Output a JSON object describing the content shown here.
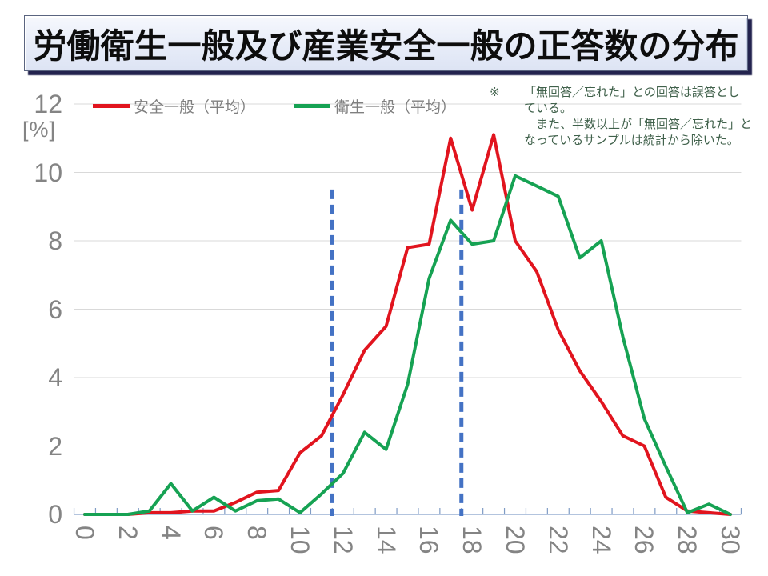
{
  "title": "労働衛生一般及び産業安全一般の正答数の分布",
  "note": {
    "marker": "※",
    "lines": [
      "「無回答／忘れた」との回答は誤答とし",
      "ている。",
      "　また、半数以上が「無回答／忘れた」と",
      "なっているサンプルは統計から除いた。"
    ]
  },
  "colors": {
    "grid": "#d9d9d9",
    "axis": "#9ab1d3",
    "tick": "#7f9cc5",
    "axis_label": "#848484",
    "legend_text": "#7f7f7f",
    "note_text": "#40614b",
    "series_red": "#e1141e",
    "series_green": "#16a253",
    "mean_line_blue": "#4472c4"
  },
  "chart_data": {
    "type": "line",
    "title": "労働衛生一般及び産業安全一般の正答数の分布",
    "xlabel": "",
    "ylabel": "[%]",
    "categories": [
      0,
      1,
      2,
      3,
      4,
      5,
      6,
      7,
      8,
      9,
      10,
      11,
      12,
      13,
      14,
      15,
      16,
      17,
      18,
      19,
      20,
      21,
      22,
      23,
      24,
      25,
      26,
      27,
      28,
      29,
      30
    ],
    "yticks": [
      0,
      2,
      4,
      6,
      8,
      10,
      12
    ],
    "ylim": [
      0,
      12
    ],
    "grid": true,
    "legend_position": "top",
    "series": [
      {
        "name": "安全一般（平均）",
        "color": "#e1141e",
        "values": [
          0,
          0,
          0,
          0.05,
          0.05,
          0.1,
          0.1,
          0.35,
          0.65,
          0.7,
          1.8,
          2.3,
          3.5,
          4.8,
          5.5,
          7.8,
          7.9,
          11.0,
          8.9,
          11.1,
          8.0,
          7.1,
          5.4,
          4.2,
          3.3,
          2.3,
          2.0,
          0.5,
          0.1,
          0.05,
          0
        ]
      },
      {
        "name": "衛生一般（平均）",
        "color": "#16a253",
        "values": [
          0,
          0,
          0,
          0.1,
          0.9,
          0.1,
          0.5,
          0.1,
          0.4,
          0.45,
          0.05,
          0.6,
          1.2,
          2.4,
          1.9,
          3.8,
          6.9,
          8.6,
          7.9,
          8.0,
          9.9,
          9.6,
          9.3,
          7.5,
          8.0,
          5.2,
          2.8,
          1.4,
          0.05,
          0.3,
          0
        ]
      }
    ],
    "mean_lines": {
      "style": "dashed-vertical",
      "color": "#4472c4",
      "x_values": [
        11.5,
        17.5
      ],
      "top_value": 9.5
    }
  }
}
